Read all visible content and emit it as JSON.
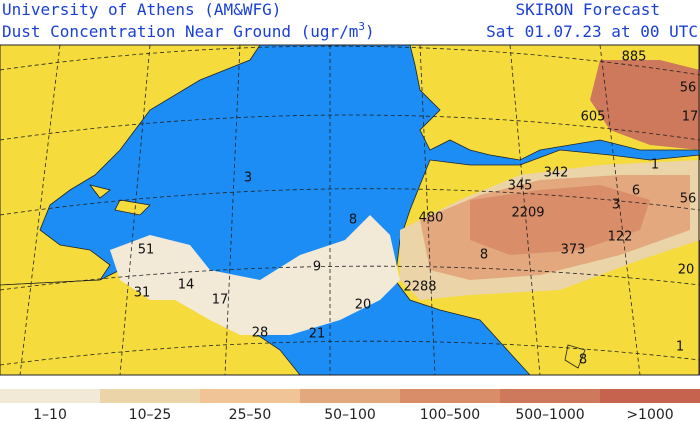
{
  "header": {
    "institution": "University of Athens (AM&WFG)",
    "product_prefix": "Dust Concentration Near Ground (ugr/m",
    "product_superscript": "3",
    "product_suffix": ")",
    "model": "SKIRON Forecast",
    "valid_time": "Sat 01.07.23 at 00 UTC"
  },
  "map": {
    "ocean_color": "#1c8df5",
    "land_color": "#f5dc3c",
    "labels": [
      "885",
      "56",
      "605",
      "17",
      "1",
      "342",
      "345",
      "6",
      "56",
      "3",
      "480",
      "2209",
      "8",
      "122",
      "373",
      "51",
      "8",
      "9",
      "14",
      "2288",
      "20",
      "31",
      "17",
      "20",
      "28",
      "21",
      "3",
      "1",
      "8"
    ]
  },
  "legend": {
    "classes": [
      {
        "label": "1–10",
        "color": "#f2e9d6"
      },
      {
        "label": "10–25",
        "color": "#ead4a8"
      },
      {
        "label": "25–50",
        "color": "#f1c498"
      },
      {
        "label": "50–100",
        "color": "#e3a87d"
      },
      {
        "label": "100–500",
        "color": "#d98d69"
      },
      {
        "label": "500–1000",
        "color": "#ce785c"
      },
      {
        "label": ">1000",
        "color": "#c6634e"
      }
    ]
  }
}
